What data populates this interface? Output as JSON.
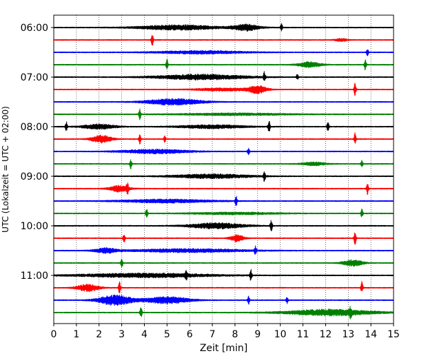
{
  "chart_data": {
    "type": "line",
    "subtype": "helicorder",
    "xlabel": "Zeit  [min]",
    "ylabel": "UTC (Lokalzeit = UTC + 02:00)",
    "xlim": [
      0,
      15
    ],
    "x_ticks": [
      0,
      1,
      2,
      3,
      4,
      5,
      6,
      7,
      8,
      9,
      10,
      11,
      12,
      13,
      14,
      15
    ],
    "x_tick_labels": [
      "0",
      "1",
      "2",
      "3",
      "4",
      "5",
      "6",
      "7",
      "8",
      "9",
      "10",
      "11",
      "12",
      "13",
      "14",
      "15"
    ],
    "y_tick_labels": [
      "06:00",
      "07:00",
      "08:00",
      "09:00",
      "10:00",
      "11:00"
    ],
    "y_tick_rows": [
      0,
      4,
      8,
      12,
      16,
      20
    ],
    "trace_colors": [
      "#000000",
      "#ff0000",
      "#0000ff",
      "#008000"
    ],
    "vertical_grid": true,
    "grid_style": "dotted",
    "traces": [
      {
        "row": 0,
        "color": "#000000",
        "spikes": [
          {
            "t": 10.05,
            "a": 0.6
          }
        ],
        "bursts": [
          {
            "t": 5.5,
            "w": 3.5,
            "a": 0.35
          },
          {
            "t": 8.5,
            "w": 1.2,
            "a": 0.45
          }
        ]
      },
      {
        "row": 1,
        "color": "#ff0000",
        "spikes": [
          {
            "t": 4.35,
            "a": 1.0
          }
        ],
        "bursts": [
          {
            "t": 12.7,
            "w": 0.5,
            "a": 0.2
          }
        ]
      },
      {
        "row": 2,
        "color": "#0000ff",
        "spikes": [
          {
            "t": 13.85,
            "a": 0.5
          }
        ],
        "bursts": [
          {
            "t": 6.5,
            "w": 4.0,
            "a": 0.22
          }
        ]
      },
      {
        "row": 3,
        "color": "#008000",
        "spikes": [
          {
            "t": 5.0,
            "a": 0.8
          },
          {
            "t": 13.75,
            "a": 0.9
          }
        ],
        "bursts": [
          {
            "t": 11.3,
            "w": 1.0,
            "a": 0.4
          }
        ]
      },
      {
        "row": 4,
        "color": "#000000",
        "spikes": [
          {
            "t": 9.3,
            "a": 0.8
          },
          {
            "t": 10.75,
            "a": 0.4
          }
        ],
        "bursts": [
          {
            "t": 6.5,
            "w": 4.0,
            "a": 0.38
          }
        ]
      },
      {
        "row": 5,
        "color": "#ff0000",
        "spikes": [
          {
            "t": 13.3,
            "a": 1.0
          }
        ],
        "bursts": [
          {
            "t": 9.0,
            "w": 0.8,
            "a": 0.55
          },
          {
            "t": 7.5,
            "w": 2.5,
            "a": 0.2
          }
        ]
      },
      {
        "row": 6,
        "color": "#0000ff",
        "spikes": [],
        "bursts": [
          {
            "t": 5.3,
            "w": 2.5,
            "a": 0.45
          }
        ]
      },
      {
        "row": 7,
        "color": "#008000",
        "spikes": [
          {
            "t": 3.8,
            "a": 0.8
          }
        ],
        "bursts": [
          {
            "t": 8.0,
            "w": 5.0,
            "a": 0.15
          }
        ]
      },
      {
        "row": 8,
        "color": "#000000",
        "spikes": [
          {
            "t": 0.55,
            "a": 0.8
          },
          {
            "t": 9.5,
            "a": 1.0
          },
          {
            "t": 12.1,
            "a": 0.7
          }
        ],
        "bursts": [
          {
            "t": 2.0,
            "w": 1.5,
            "a": 0.35
          },
          {
            "t": 7.0,
            "w": 3.0,
            "a": 0.25
          }
        ]
      },
      {
        "row": 9,
        "color": "#ff0000",
        "spikes": [
          {
            "t": 3.8,
            "a": 0.7
          },
          {
            "t": 4.9,
            "a": 0.5
          },
          {
            "t": 13.3,
            "a": 0.9
          }
        ],
        "bursts": [
          {
            "t": 2.1,
            "w": 0.9,
            "a": 0.55
          }
        ]
      },
      {
        "row": 10,
        "color": "#0000ff",
        "spikes": [
          {
            "t": 8.6,
            "a": 0.5
          }
        ],
        "bursts": [
          {
            "t": 4.5,
            "w": 3.0,
            "a": 0.3
          }
        ]
      },
      {
        "row": 11,
        "color": "#008000",
        "spikes": [
          {
            "t": 3.4,
            "a": 0.8
          },
          {
            "t": 13.6,
            "a": 0.6
          }
        ],
        "bursts": [
          {
            "t": 11.5,
            "w": 1.0,
            "a": 0.25
          }
        ]
      },
      {
        "row": 12,
        "color": "#000000",
        "spikes": [
          {
            "t": 9.3,
            "a": 0.8
          }
        ],
        "bursts": [
          {
            "t": 7.0,
            "w": 3.5,
            "a": 0.3
          }
        ]
      },
      {
        "row": 13,
        "color": "#ff0000",
        "spikes": [
          {
            "t": 3.25,
            "a": 0.8
          },
          {
            "t": 13.85,
            "a": 0.9
          }
        ],
        "bursts": [
          {
            "t": 2.9,
            "w": 0.9,
            "a": 0.45
          }
        ]
      },
      {
        "row": 14,
        "color": "#0000ff",
        "spikes": [
          {
            "t": 8.05,
            "a": 0.8
          }
        ],
        "bursts": [
          {
            "t": 5.0,
            "w": 4.0,
            "a": 0.25
          }
        ]
      },
      {
        "row": 15,
        "color": "#008000",
        "spikes": [
          {
            "t": 4.1,
            "a": 0.8
          },
          {
            "t": 13.6,
            "a": 0.7
          }
        ],
        "bursts": [
          {
            "t": 8.0,
            "w": 4.0,
            "a": 0.15
          }
        ]
      },
      {
        "row": 16,
        "color": "#000000",
        "spikes": [
          {
            "t": 9.6,
            "a": 0.9
          }
        ],
        "bursts": [
          {
            "t": 7.2,
            "w": 2.5,
            "a": 0.4
          }
        ]
      },
      {
        "row": 17,
        "color": "#ff0000",
        "spikes": [
          {
            "t": 3.1,
            "a": 0.8
          },
          {
            "t": 13.3,
            "a": 1.0
          }
        ],
        "bursts": [
          {
            "t": 8.1,
            "w": 0.6,
            "a": 0.5
          }
        ]
      },
      {
        "row": 18,
        "color": "#0000ff",
        "spikes": [
          {
            "t": 8.9,
            "a": 0.6
          }
        ],
        "bursts": [
          {
            "t": 2.3,
            "w": 1.0,
            "a": 0.35
          },
          {
            "t": 6.0,
            "w": 5.0,
            "a": 0.25
          }
        ]
      },
      {
        "row": 19,
        "color": "#008000",
        "spikes": [
          {
            "t": 3.0,
            "a": 0.9
          }
        ],
        "bursts": [
          {
            "t": 13.2,
            "w": 0.9,
            "a": 0.45
          }
        ]
      },
      {
        "row": 20,
        "color": "#000000",
        "spikes": [
          {
            "t": 5.85,
            "a": 0.6
          },
          {
            "t": 8.7,
            "a": 0.9
          }
        ],
        "bursts": [
          {
            "t": 4.0,
            "w": 6.0,
            "a": 0.3
          }
        ]
      },
      {
        "row": 21,
        "color": "#ff0000",
        "spikes": [
          {
            "t": 2.9,
            "a": 0.9
          },
          {
            "t": 13.6,
            "a": 0.9
          }
        ],
        "bursts": [
          {
            "t": 1.5,
            "w": 1.0,
            "a": 0.5
          }
        ]
      },
      {
        "row": 22,
        "color": "#0000ff",
        "spikes": [
          {
            "t": 8.6,
            "a": 0.6
          },
          {
            "t": 10.3,
            "a": 0.5
          }
        ],
        "bursts": [
          {
            "t": 2.7,
            "w": 1.5,
            "a": 0.75
          },
          {
            "t": 5.0,
            "w": 2.0,
            "a": 0.5
          }
        ]
      },
      {
        "row": 23,
        "color": "#008000",
        "spikes": [
          {
            "t": 3.85,
            "a": 0.9
          },
          {
            "t": 13.1,
            "a": 0.7
          }
        ],
        "bursts": [
          {
            "t": 12.2,
            "w": 4.0,
            "a": 0.45
          }
        ]
      }
    ]
  }
}
